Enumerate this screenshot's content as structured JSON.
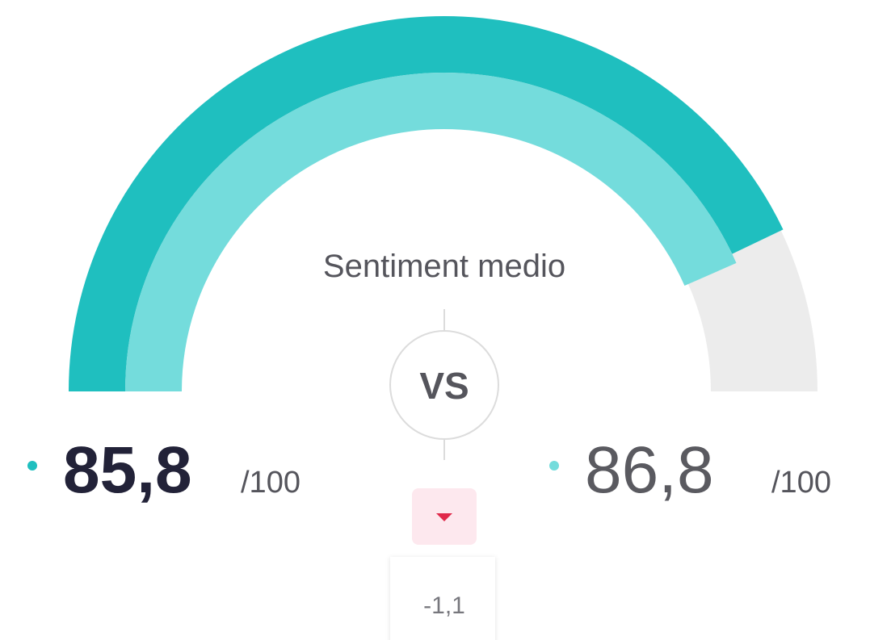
{
  "chart_data": {
    "type": "gauge",
    "title": "Sentiment medio",
    "center_label": "VS",
    "ylim": [
      0,
      100
    ],
    "max_label": "/100",
    "values": [
      85.8,
      86.8
    ],
    "value_labels": [
      "85,8",
      "86,8"
    ],
    "colors": [
      "#1fbfbf",
      "#74dcdc"
    ],
    "track_color": "#ececec",
    "delta": -1.1,
    "delta_label": "-1,1",
    "delta_color": "#e0294a"
  }
}
